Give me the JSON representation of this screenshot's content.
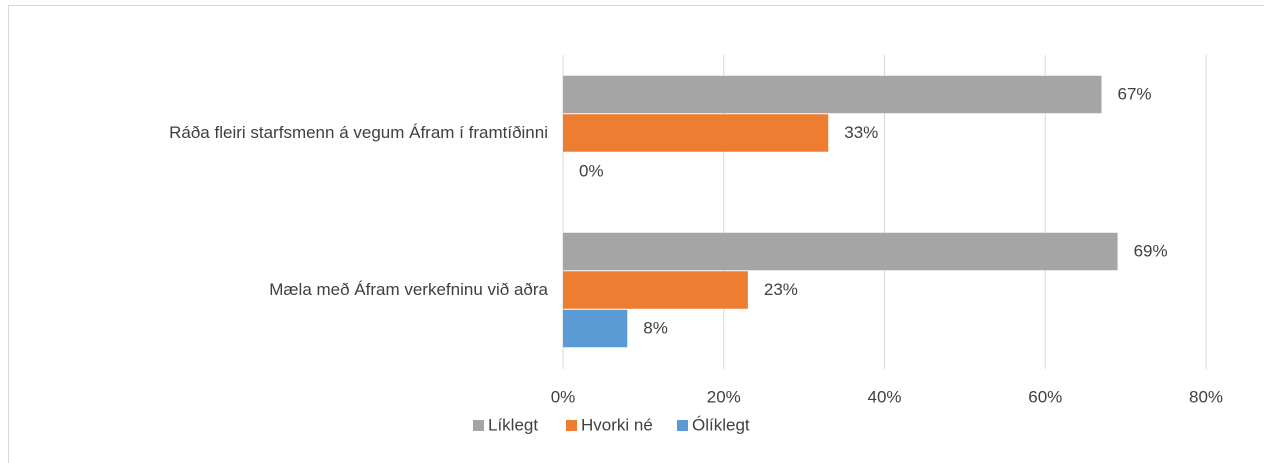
{
  "chart_data": {
    "type": "bar",
    "orientation": "horizontal",
    "categories": [
      "Ráða fleiri starfsmenn á vegum Áfram í framtíðinni",
      "Mæla með Áfram verkefninu við aðra"
    ],
    "series": [
      {
        "name": "Líklegt",
        "color": "#a5a5a5",
        "values": [
          67,
          69
        ],
        "value_labels": [
          "67%",
          "69%"
        ]
      },
      {
        "name": "Hvorki né",
        "color": "#ed7d31",
        "values": [
          33,
          23
        ],
        "value_labels": [
          "33%",
          "23%"
        ]
      },
      {
        "name": "Ólíklegt",
        "color": "#5b9bd5",
        "values": [
          0,
          8
        ],
        "value_labels": [
          "0%",
          "8%"
        ]
      }
    ],
    "xlim": [
      0,
      80
    ],
    "xticks": [
      {
        "value": 0,
        "label": "0%"
      },
      {
        "value": 20,
        "label": "20%"
      },
      {
        "value": 40,
        "label": "40%"
      },
      {
        "value": 60,
        "label": "60%"
      },
      {
        "value": 80,
        "label": "80%"
      }
    ],
    "grid": true,
    "legend": "bottom"
  }
}
